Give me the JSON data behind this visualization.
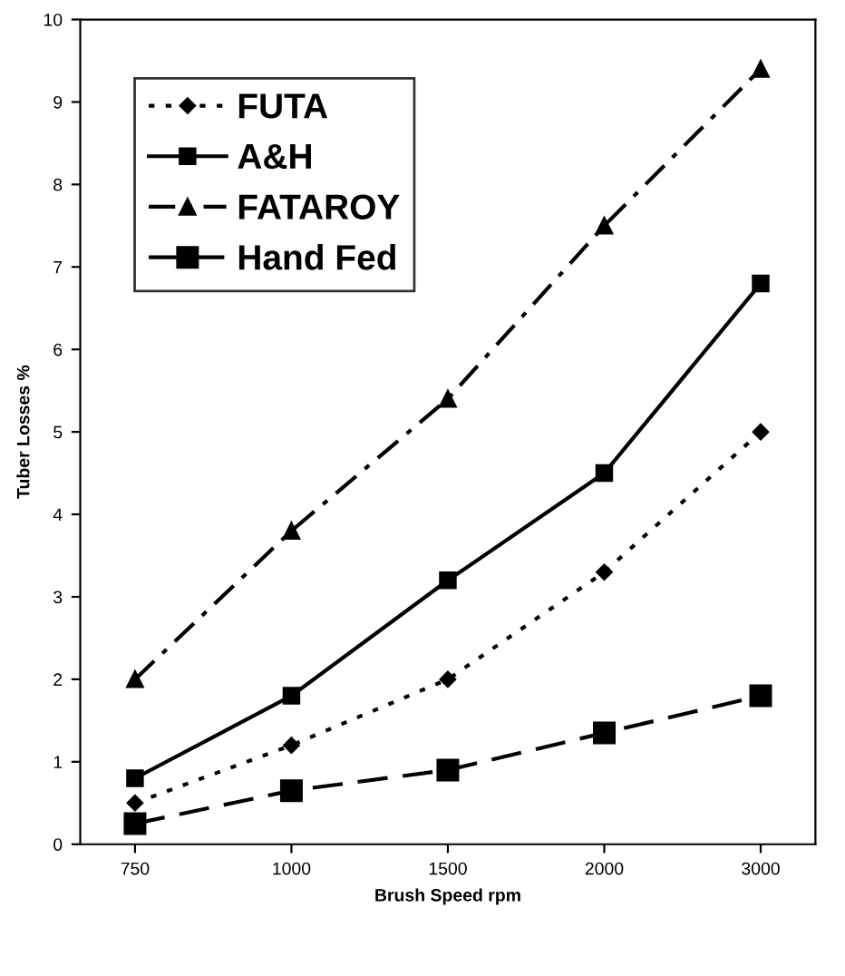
{
  "chart_data": {
    "type": "line",
    "xlabel": "Brush Speed rpm",
    "ylabel": "Tuber Losses %",
    "categories": [
      "750",
      "1000",
      "1500",
      "2000",
      "3000"
    ],
    "series": [
      {
        "name": "FUTA",
        "color": "#000000",
        "marker": "diamond",
        "line_style": "dotted",
        "values": [
          0.5,
          1.2,
          2.0,
          3.3,
          5.0
        ]
      },
      {
        "name": "A&H",
        "color": "#000000",
        "marker": "square",
        "line_style": "solid",
        "values": [
          0.8,
          1.8,
          3.2,
          4.5,
          6.8
        ]
      },
      {
        "name": "FATAROY",
        "color": "#000000",
        "marker": "triangle",
        "line_style": "dashdot",
        "values": [
          2.0,
          3.8,
          5.4,
          7.5,
          9.4
        ]
      },
      {
        "name": "Hand Fed",
        "color": "#000000",
        "marker": "square",
        "line_style": "dashed",
        "values": [
          0.25,
          0.65,
          0.9,
          1.35,
          1.8
        ]
      }
    ],
    "ylim": [
      0,
      10
    ],
    "yticks": [
      0,
      1,
      2,
      3,
      4,
      5,
      6,
      7,
      8,
      9,
      10
    ],
    "grid": false,
    "legend": "top left"
  }
}
